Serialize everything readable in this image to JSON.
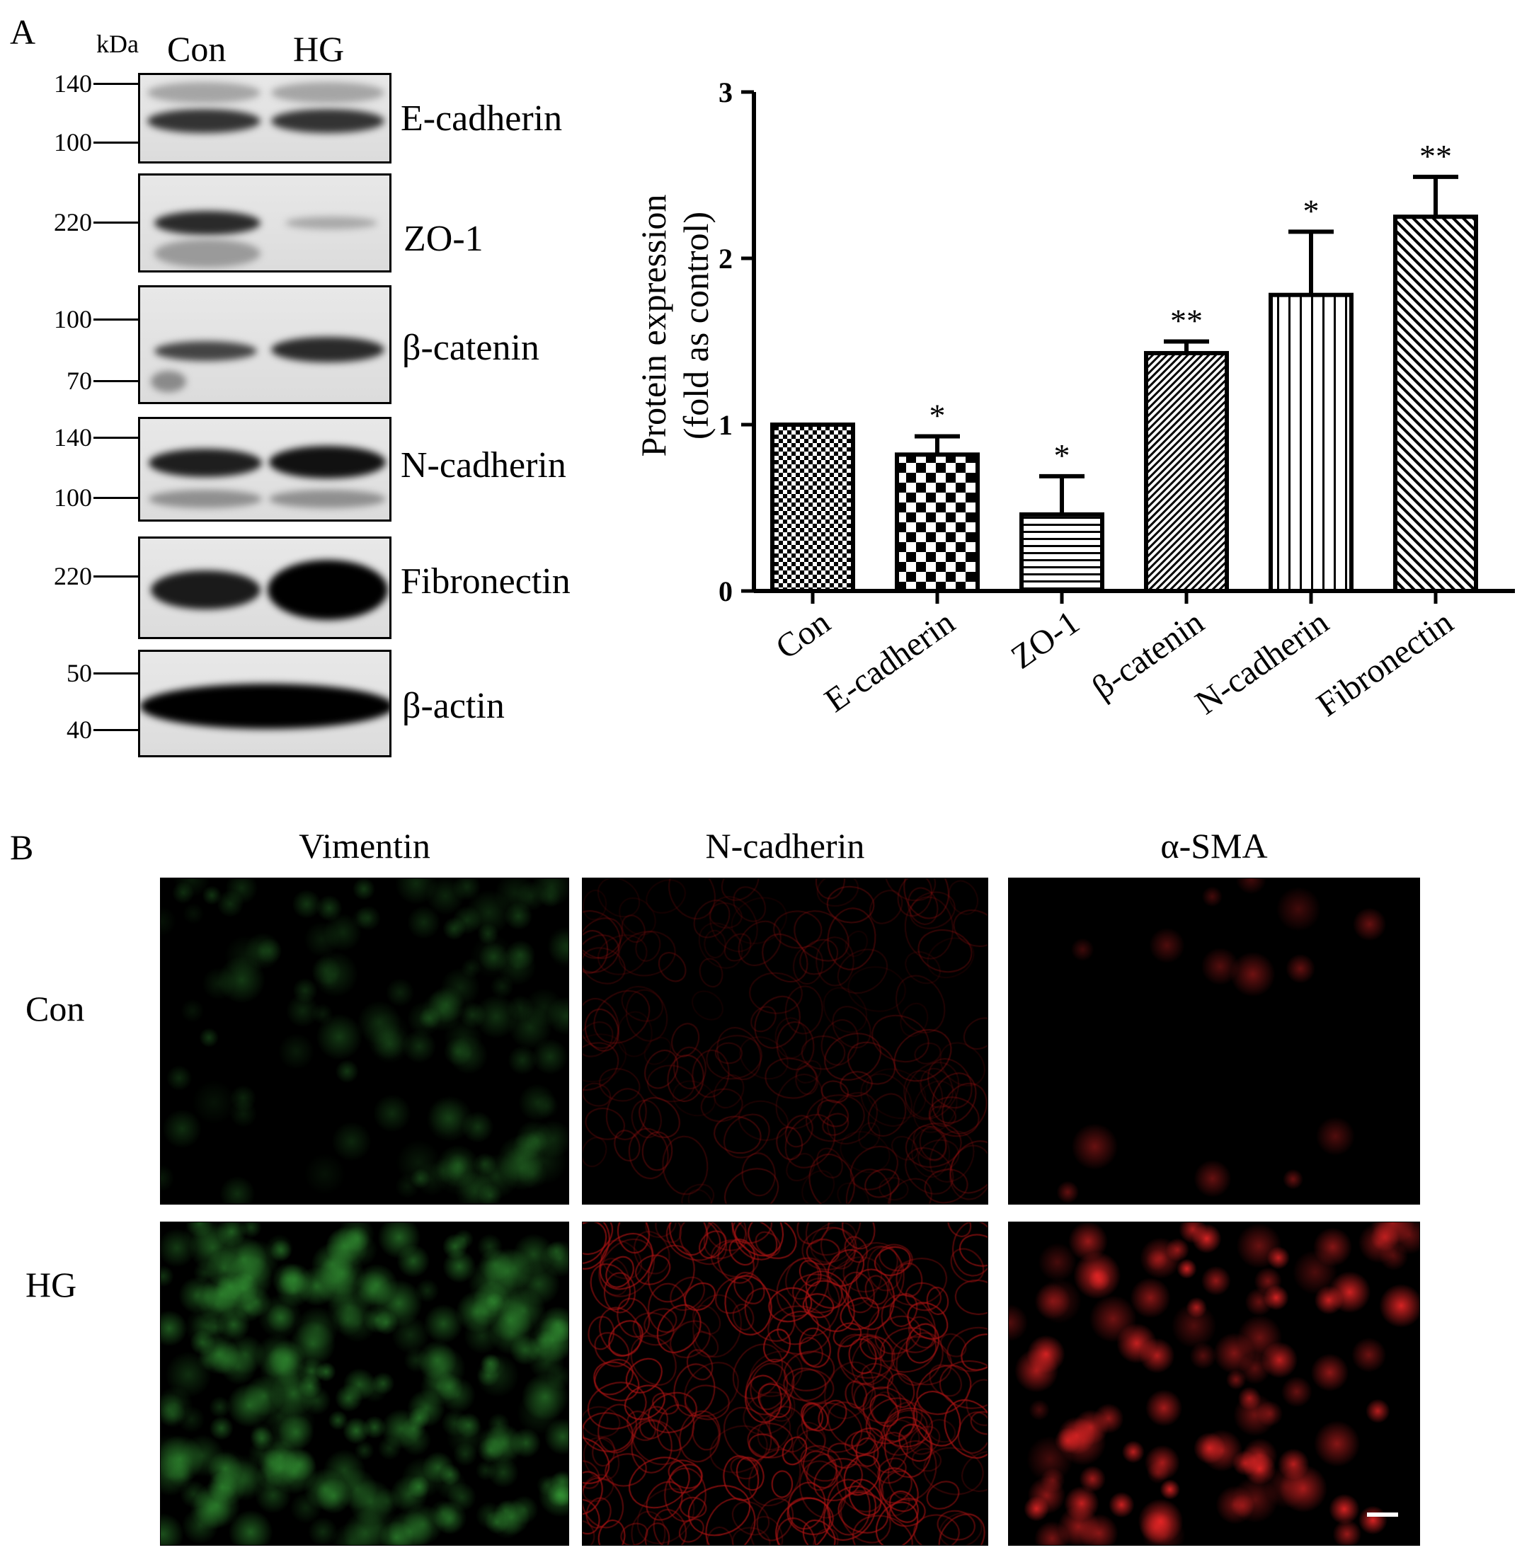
{
  "panel_a": {
    "letter": "A",
    "kda_label": "kDa",
    "lanes": [
      "Con",
      "HG"
    ],
    "blots": [
      {
        "protein": "E-cadherin",
        "markers": [
          "140",
          "100"
        ]
      },
      {
        "protein": "ZO-1",
        "markers": [
          "220"
        ]
      },
      {
        "protein": "β-catenin",
        "markers": [
          "100",
          "70"
        ]
      },
      {
        "protein": "N-cadherin",
        "markers": [
          "140",
          "100"
        ]
      },
      {
        "protein": "Fibronectin",
        "markers": [
          "220"
        ]
      },
      {
        "protein": "β-actin",
        "markers": [
          "50",
          "40"
        ]
      }
    ]
  },
  "chart_data": {
    "type": "bar",
    "categories": [
      "Con",
      "E-cadherin",
      "ZO-1",
      "β-catenin",
      "N-cadherin",
      "Fibronectin"
    ],
    "values": [
      1.0,
      0.82,
      0.46,
      1.43,
      1.78,
      2.25
    ],
    "errors": [
      0.0,
      0.11,
      0.23,
      0.07,
      0.38,
      0.24
    ],
    "significance": [
      "",
      "*",
      "*",
      "**",
      "*",
      "**"
    ],
    "ylabel_line1": "Protein expression",
    "ylabel_line2": "(fold as control)",
    "ylim": [
      0,
      3
    ],
    "yticks": [
      "0",
      "1",
      "2",
      "3"
    ],
    "patterns": [
      "fine-checker",
      "checker",
      "horizontal-lines",
      "fine-diagonal",
      "vertical-lines",
      "diagonal"
    ]
  },
  "panel_b": {
    "letter": "B",
    "columns": [
      "Vimentin",
      "N-cadherin",
      "α-SMA"
    ],
    "rows": [
      "Con",
      "HG"
    ],
    "colors": {
      "vimentin": "#3aa63a",
      "ncadherin": "#b01414",
      "asma": "#ff2a2a"
    }
  }
}
